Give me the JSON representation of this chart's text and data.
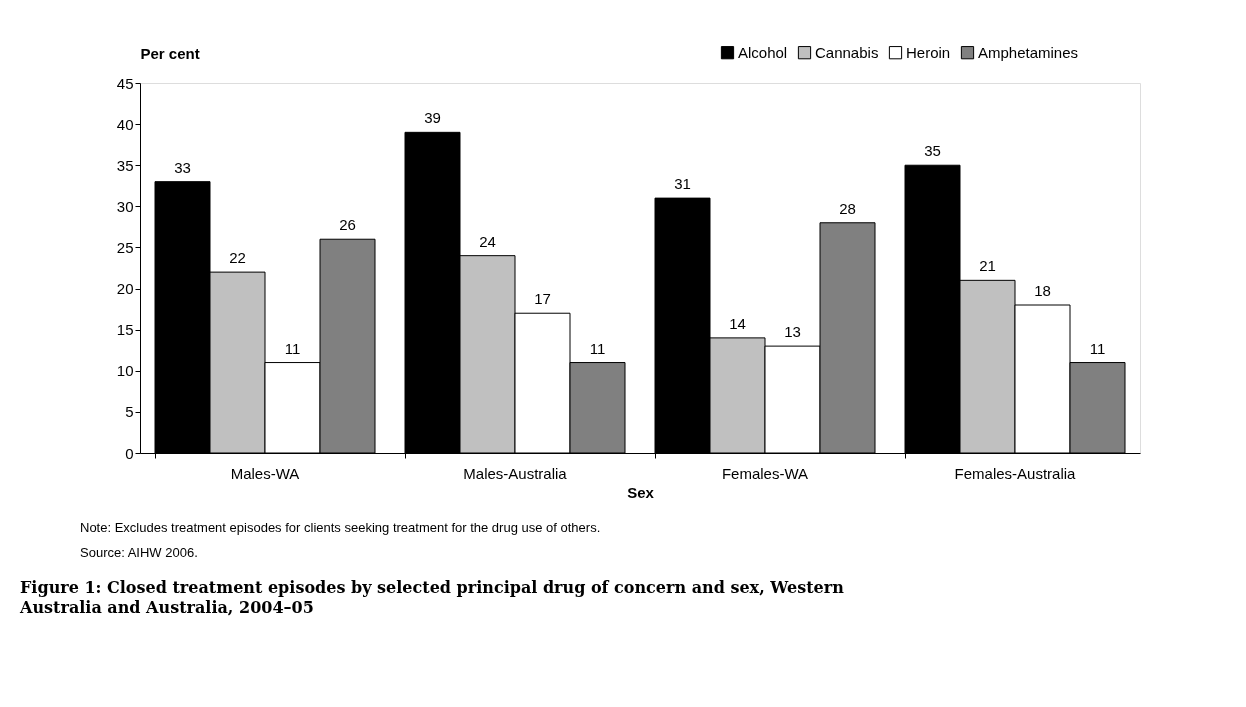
{
  "chart_data": {
    "type": "bar",
    "title": "Figure 1: Closed treatment episodes by selected principal drug of concern and sex, Western Australia and Australia, 2004–05",
    "xlabel": "Sex",
    "ylabel": "Per cent",
    "categories": [
      "Males-WA",
      "Males-Australia",
      "Females-WA",
      "Females-Australia"
    ],
    "series": [
      {
        "name": "Alcohol",
        "color": "#000000",
        "values": [
          33,
          39,
          31,
          35
        ]
      },
      {
        "name": "Cannabis",
        "color": "#c0c0c0",
        "values": [
          22,
          24,
          14,
          21
        ]
      },
      {
        "name": "Heroin",
        "color": "#ffffff",
        "values": [
          11,
          17,
          13,
          18
        ]
      },
      {
        "name": "Amphetamines",
        "color": "#808080",
        "values": [
          26,
          11,
          28,
          11
        ]
      }
    ],
    "ylim": [
      0,
      45
    ],
    "yticks": [
      0,
      5,
      10,
      15,
      20,
      25,
      30,
      35,
      40,
      45
    ],
    "grid": false,
    "legend": "top right",
    "data_labels": true,
    "annotations": [
      "Note:  Excludes treatment episodes for clients seeking treatment for the drug use of others.",
      "Source: AIHW 2006."
    ]
  }
}
